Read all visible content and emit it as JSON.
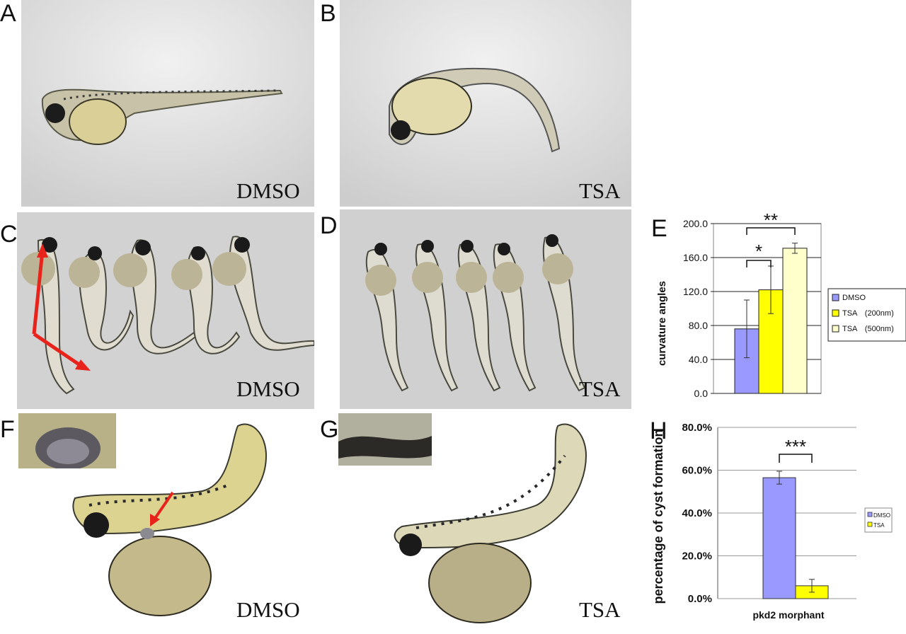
{
  "panels": [
    {
      "letter": "A",
      "caption": "DMSO"
    },
    {
      "letter": "B",
      "caption": "TSA"
    },
    {
      "letter": "C",
      "caption": "DMSO"
    },
    {
      "letter": "D",
      "caption": "TSA"
    },
    {
      "letter": "E"
    },
    {
      "letter": "F",
      "caption": "DMSO"
    },
    {
      "letter": "G",
      "caption": "TSA"
    },
    {
      "letter": "H"
    }
  ],
  "colors": {
    "dmso": "#9999ff",
    "tsa200": "#ffff00",
    "tsa500": "#ffffcc",
    "arrow": "#e8231c"
  },
  "chart_data": [
    {
      "type": "bar",
      "panel": "E",
      "ylabel": "curvature angles",
      "ylim": [
        0,
        200
      ],
      "yticks": [
        "0.0",
        "40.0",
        "80.0",
        "120.0",
        "160.0",
        "200.0"
      ],
      "series": [
        {
          "name": "DMSO",
          "value": 76,
          "error": 34
        },
        {
          "name": "TSA　(200nm)",
          "value": 122,
          "error": 28
        },
        {
          "name": "TSA　(500nm)",
          "value": 171,
          "error": 6
        }
      ],
      "annotations": [
        "*",
        "**"
      ]
    },
    {
      "type": "bar",
      "panel": "H",
      "ylabel": "percentage of cyst formation",
      "xlabel": "pkd2 morphant",
      "ylim": [
        0,
        80
      ],
      "yticks": [
        "0.0%",
        "20.0%",
        "40.0%",
        "60.0%",
        "80.0%"
      ],
      "series": [
        {
          "name": "DMSO",
          "value": 56.5,
          "error": 3
        },
        {
          "name": "TSA",
          "value": 6,
          "error": 3
        }
      ],
      "annotations": [
        "***"
      ]
    }
  ]
}
